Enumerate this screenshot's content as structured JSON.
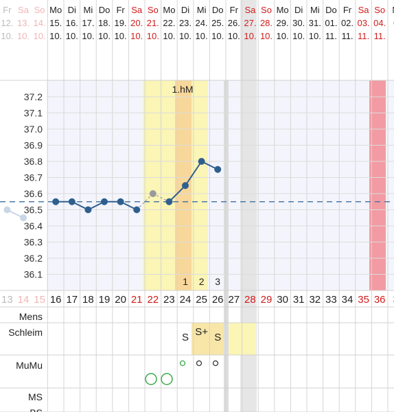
{
  "header": {
    "weekdays": [
      "Fr",
      "Sa",
      "So",
      "Mo",
      "Di",
      "Mi",
      "Do",
      "Fr",
      "Sa",
      "So",
      "Mo",
      "Di",
      "Mi",
      "Do",
      "Fr",
      "Sa",
      "So",
      "Mo",
      "Di",
      "Mi",
      "Do",
      "Fr",
      "Sa",
      "So",
      "M"
    ],
    "days": [
      "12.",
      "13.",
      "14.",
      "15.",
      "16.",
      "17.",
      "18.",
      "19.",
      "20.",
      "21.",
      "22.",
      "23.",
      "24.",
      "25.",
      "26.",
      "27.",
      "28.",
      "29.",
      "30.",
      "31.",
      "01.",
      "02.",
      "03.",
      "04.",
      "0"
    ],
    "months": [
      "10.",
      "10.",
      "10.",
      "10.",
      "10.",
      "10.",
      "10.",
      "10.",
      "10.",
      "10.",
      "10.",
      "10.",
      "10.",
      "10.",
      "10.",
      "10.",
      "10.",
      "10.",
      "10.",
      "10.",
      "11.",
      "11.",
      "11.",
      "11.",
      "1"
    ]
  },
  "cycle_days": [
    "13",
    "14",
    "15",
    "16",
    "17",
    "18",
    "19",
    "20",
    "21",
    "22",
    "23",
    "24",
    "25",
    "26",
    "27",
    "28",
    "29",
    "30",
    "31",
    "32",
    "33",
    "34",
    "35",
    "36",
    "3"
  ],
  "row_labels": {
    "mens": "Mens",
    "schleim": "Schleim",
    "mumu": "MuMu",
    "ms": "MS",
    "bottom_partial": "BS"
  },
  "hm_label": "1.hM",
  "peak_numbers": [
    "1",
    "2",
    "3"
  ],
  "schleim_marks": [
    {
      "day_index": 11,
      "label": "S"
    },
    {
      "day_index": 12,
      "label": "S+"
    },
    {
      "day_index": 13,
      "label": "S"
    }
  ],
  "colors": {
    "weekend_text": "#d11a1a",
    "faded_weekend_text": "#f2b5b5",
    "line": "#2f5f8f",
    "coverline": "#4a78a8",
    "fertile_yellow": "#fbf5b6",
    "peak_orange": "#f7d79a",
    "period_red": "#f29ba2",
    "temp_area_bg": "#f4f5fc",
    "grey_column": "#e3e3e3",
    "mumu_green": "#3aa84b"
  },
  "chart_data": {
    "type": "line",
    "title": "",
    "xlabel": "",
    "ylabel": "",
    "y_ticks": [
      "37.2",
      "37.1",
      "37.0",
      "36.9",
      "36.8",
      "36.7",
      "36.6",
      "36.5",
      "36.4",
      "36.3",
      "36.2",
      "36.1"
    ],
    "ylim": [
      36.0,
      37.25
    ],
    "coverline": 36.55,
    "series": [
      {
        "values": [
          {
            "day": "12.",
            "temp": 36.5,
            "style": "faded"
          },
          {
            "day": "13.",
            "temp": 36.45,
            "style": "faded"
          },
          {
            "day": "15.",
            "temp": 36.55,
            "style": "normal"
          },
          {
            "day": "16.",
            "temp": 36.55,
            "style": "normal"
          },
          {
            "day": "17.",
            "temp": 36.5,
            "style": "normal"
          },
          {
            "day": "18.",
            "temp": 36.55,
            "style": "normal"
          },
          {
            "day": "19.",
            "temp": 36.55,
            "style": "normal"
          },
          {
            "day": "20.",
            "temp": 36.5,
            "style": "normal"
          },
          {
            "day": "21.",
            "temp": 36.6,
            "style": "excluded"
          },
          {
            "day": "22.",
            "temp": 36.55,
            "style": "normal"
          },
          {
            "day": "23.",
            "temp": 36.65,
            "style": "normal"
          },
          {
            "day": "24.",
            "temp": 36.8,
            "style": "normal"
          },
          {
            "day": "25.",
            "temp": 36.75,
            "style": "normal"
          }
        ]
      }
    ]
  }
}
